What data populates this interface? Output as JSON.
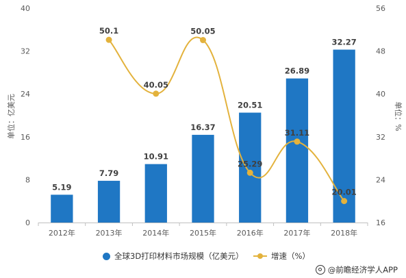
{
  "chart_data": {
    "type": "bar+line",
    "categories": [
      "2012年",
      "2013年",
      "2014年",
      "2015年",
      "2016年",
      "2017年",
      "2018年"
    ],
    "bar_series": {
      "name": "全球3D打印材料市场规模（亿美元）",
      "values": [
        5.19,
        7.79,
        10.91,
        16.37,
        20.51,
        26.89,
        32.27
      ],
      "color": "#1f77c4",
      "axis": "left"
    },
    "line_series": {
      "name": "增速（%）",
      "values": [
        null,
        50.1,
        40.05,
        50.05,
        25.29,
        31.11,
        20.01
      ],
      "labels": [
        "",
        "50.1",
        "40.05",
        "50.05",
        "25.29",
        "31.11",
        "20.01"
      ],
      "color": "#e3b23c",
      "axis": "right"
    },
    "ylabel_left": "单位：亿美元",
    "ylabel_right": "单位：%",
    "ylim_left": [
      0,
      40
    ],
    "yticks_left": [
      0,
      8,
      16,
      24,
      32,
      40
    ],
    "ylim_right": [
      16,
      56
    ],
    "yticks_right": [
      16,
      24,
      32,
      40,
      48,
      56
    ],
    "grid": false,
    "legend_position": "bottom"
  },
  "legend": {
    "bar_label": "全球3D打印材料市场规模（亿美元）",
    "line_label": "增速（%）"
  },
  "footer": {
    "source": "@前瞻经济学人APP"
  }
}
